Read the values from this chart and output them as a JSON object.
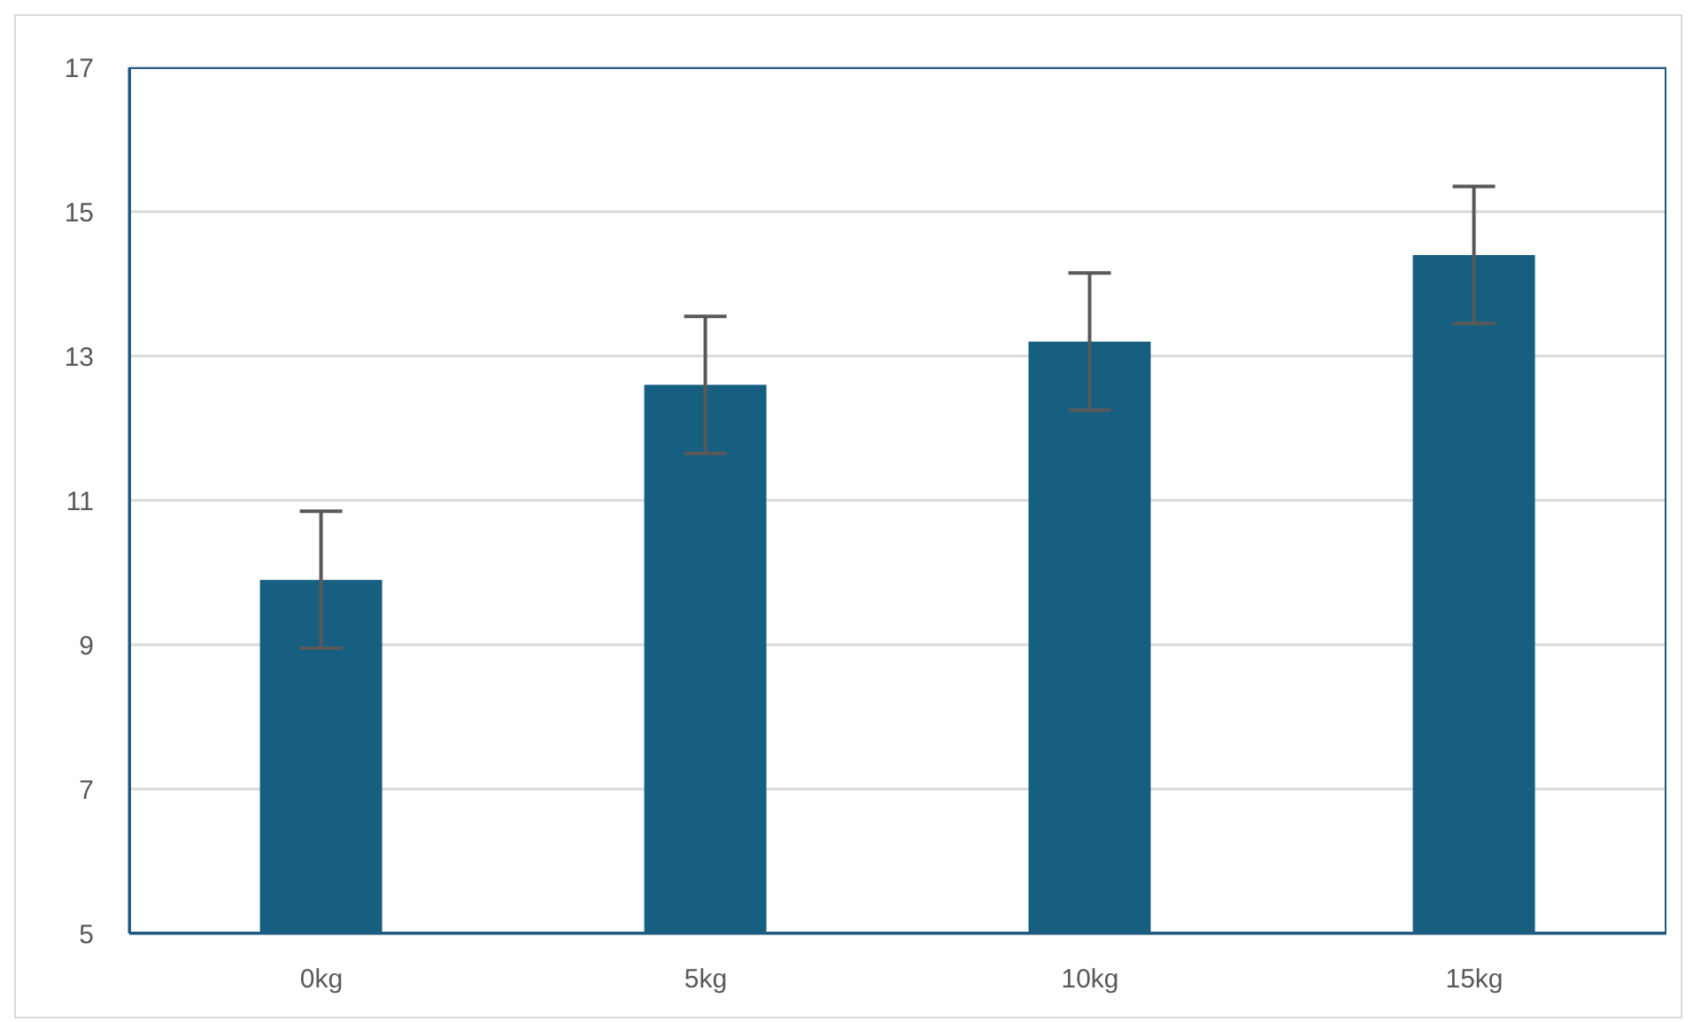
{
  "chart_data": {
    "type": "bar",
    "categories": [
      "0kg",
      "5kg",
      "10kg",
      "15kg"
    ],
    "values": [
      9.9,
      12.6,
      13.2,
      14.4
    ],
    "errors": [
      0.95,
      0.95,
      0.95,
      0.95
    ],
    "color": "#175f80",
    "ylim": [
      5,
      17
    ],
    "yticks": [
      5,
      7,
      9,
      11,
      13,
      15,
      17
    ],
    "grid": "y"
  }
}
